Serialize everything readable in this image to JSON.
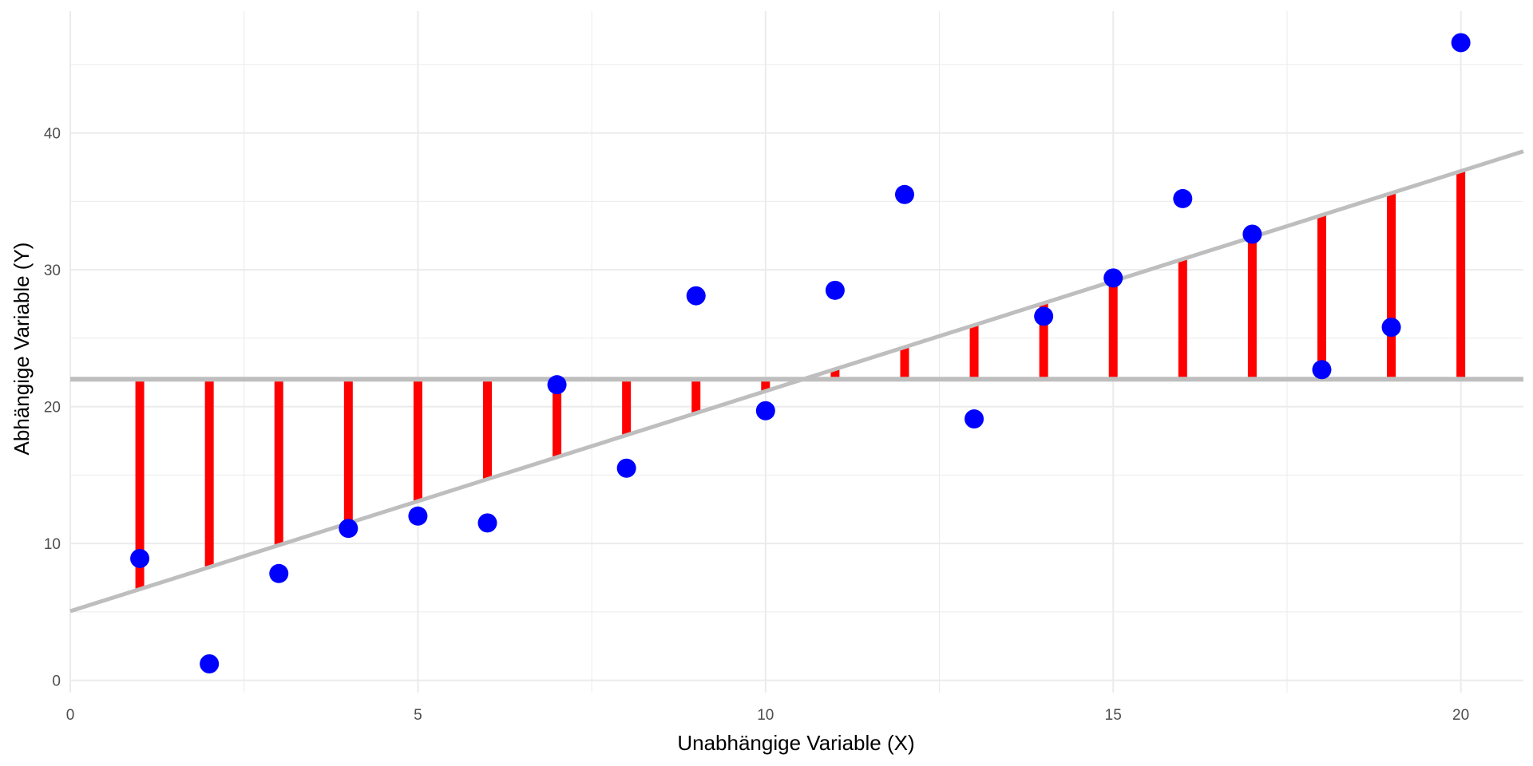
{
  "chart_data": {
    "type": "scatter",
    "xlabel": "Unabhängige Variable (X)",
    "ylabel": "Abhängige Variable (Y)",
    "xlim": [
      0,
      20.9
    ],
    "ylim": [
      -0.9,
      48.9
    ],
    "x_ticks": [
      0,
      5,
      10,
      15,
      20
    ],
    "x_tick_labels": [
      "0",
      "5",
      "10",
      "15",
      "20"
    ],
    "y_ticks": [
      0,
      10,
      20,
      30,
      40
    ],
    "y_tick_labels": [
      "0",
      "10",
      "20",
      "30",
      "40"
    ],
    "x_minor_ticks": [
      2.5,
      7.5,
      12.5,
      17.5
    ],
    "y_minor_ticks": [
      5,
      15,
      25,
      35,
      45
    ],
    "grid": true,
    "points": [
      {
        "x": 1,
        "y": 8.9
      },
      {
        "x": 2,
        "y": 1.2
      },
      {
        "x": 3,
        "y": 7.8
      },
      {
        "x": 4,
        "y": 11.1
      },
      {
        "x": 5,
        "y": 12.0
      },
      {
        "x": 6,
        "y": 11.5
      },
      {
        "x": 7,
        "y": 21.6
      },
      {
        "x": 8,
        "y": 15.5
      },
      {
        "x": 9,
        "y": 28.1
      },
      {
        "x": 10,
        "y": 19.7
      },
      {
        "x": 11,
        "y": 28.5
      },
      {
        "x": 12,
        "y": 35.5
      },
      {
        "x": 13,
        "y": 19.1
      },
      {
        "x": 14,
        "y": 26.6
      },
      {
        "x": 15,
        "y": 29.4
      },
      {
        "x": 16,
        "y": 35.2
      },
      {
        "x": 17,
        "y": 32.6
      },
      {
        "x": 18,
        "y": 22.7
      },
      {
        "x": 19,
        "y": 25.8
      },
      {
        "x": 20,
        "y": 46.6
      }
    ],
    "mean_line": {
      "y": 22.0,
      "color": "#bebebe"
    },
    "regression_line": {
      "intercept": 5.05,
      "slope": 1.608,
      "color": "#bebebe"
    },
    "deviation_segments": {
      "from": "mean_line",
      "to": "regression_line",
      "color": "#ff0000"
    },
    "point_color": "#0000ff",
    "grid_color": "#ebebeb"
  }
}
